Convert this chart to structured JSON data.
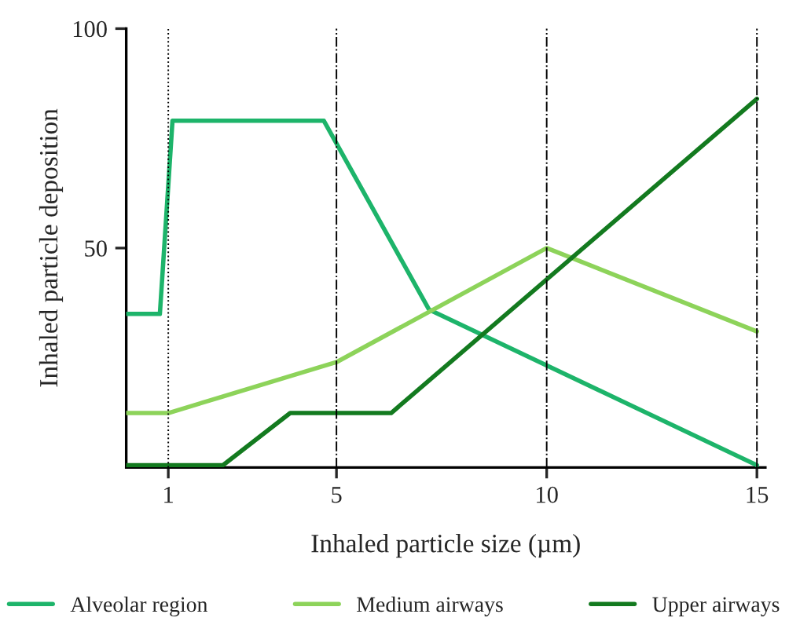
{
  "chart_data": {
    "type": "line",
    "xlabel": "Inhaled particle size (µm)",
    "ylabel": "Inhaled particle deposition",
    "xlim": [
      0,
      15.2
    ],
    "xticks": [
      1,
      5,
      10,
      15
    ],
    "ylim": [
      0,
      100
    ],
    "yticks": [
      50,
      100
    ],
    "grid": false,
    "legend": "bottom",
    "marker": "none",
    "line_style": "solid",
    "series": [
      {
        "name": "Alveolar region",
        "color": "#1db46a",
        "x": [
          0,
          0.8,
          1.1,
          4.7,
          7.2,
          15
        ],
        "values": [
          35,
          35,
          79,
          79,
          36,
          0.5
        ]
      },
      {
        "name": "Medium airways",
        "color": "#8dd35a",
        "x": [
          0,
          1,
          5,
          10,
          15
        ],
        "values": [
          12.4,
          12.4,
          24,
          50,
          31
        ]
      },
      {
        "name": "Upper airways",
        "color": "#137a1f",
        "x": [
          0,
          2.3,
          3.9,
          6.3,
          15
        ],
        "values": [
          0.5,
          0.5,
          12.4,
          12.4,
          84
        ]
      }
    ],
    "ref_lines": [
      {
        "axis": "x",
        "value": 1,
        "label": null,
        "color": "#000000",
        "line_style": "dotted"
      },
      {
        "axis": "x",
        "value": 5,
        "label": null,
        "color": "#000000",
        "line_style": "dashdot"
      },
      {
        "axis": "x",
        "value": 10,
        "label": null,
        "color": "#000000",
        "line_style": "dashdot"
      },
      {
        "axis": "x",
        "value": 15,
        "label": null,
        "color": "#000000",
        "line_style": "dashdot"
      }
    ]
  }
}
